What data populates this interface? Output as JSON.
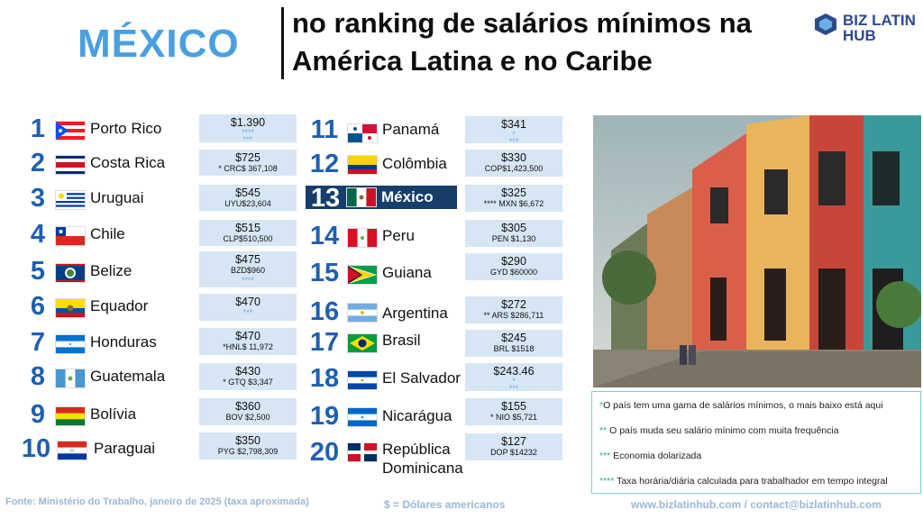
{
  "header": {
    "country": "MÉXICO",
    "title_line1": "no ranking de salários mínimos na",
    "title_line2": "América Latina e no Caribe",
    "logo_line1": "BIZ LATIN",
    "logo_line2": "HUB"
  },
  "rankings": [
    {
      "rank": "1",
      "country": "Porto Rico",
      "usd": "$1.390",
      "local": "",
      "marks": "****\n***",
      "flag": "puerto-rico-flag-icon"
    },
    {
      "rank": "2",
      "country": "Costa Rica",
      "usd": "$725",
      "local": "* CRC$ 367,108",
      "marks": "",
      "flag": "costa-rica-flag-icon"
    },
    {
      "rank": "3",
      "country": "Uruguai",
      "usd": "$545",
      "local": "UYU$23,604",
      "marks": "",
      "flag": "uruguay-flag-icon"
    },
    {
      "rank": "4",
      "country": "Chile",
      "usd": "$515",
      "local": "CLP$510,500",
      "marks": "",
      "flag": "chile-flag-icon"
    },
    {
      "rank": "5",
      "country": "Belize",
      "usd": "$475",
      "local": "BZD$960",
      "marks": "****",
      "flag": "belize-flag-icon"
    },
    {
      "rank": "6",
      "country": "Equador",
      "usd": "$470",
      "local": "",
      "marks": "***",
      "flag": "ecuador-flag-icon"
    },
    {
      "rank": "7",
      "country": "Honduras",
      "usd": "$470",
      "local": "*HNL$ 11,972",
      "marks": "",
      "flag": "honduras-flag-icon"
    },
    {
      "rank": "8",
      "country": "Guatemala",
      "usd": "$430",
      "local": "* GTQ $3,347",
      "marks": "",
      "flag": "guatemala-flag-icon"
    },
    {
      "rank": "9",
      "country": "Bolívia",
      "usd": "$360",
      "local": "BOV $2,500",
      "marks": "",
      "flag": "bolivia-flag-icon"
    },
    {
      "rank": "10",
      "country": "Paraguai",
      "usd": "$350",
      "local": "PYG $2,798,309",
      "marks": "",
      "flag": "paraguay-flag-icon"
    },
    {
      "rank": "11",
      "country": "Panamá",
      "usd": "$341",
      "local": "",
      "marks": "*\n***",
      "flag": "panama-flag-icon"
    },
    {
      "rank": "12",
      "country": "Colômbia",
      "usd": "$330",
      "local": "COP$1,423,500",
      "marks": "",
      "flag": "colombia-flag-icon"
    },
    {
      "rank": "13",
      "country": "México",
      "usd": "$325",
      "local": "**** MXN $6,672",
      "marks": "",
      "flag": "mexico-flag-icon"
    },
    {
      "rank": "14",
      "country": "Peru",
      "usd": "$305",
      "local": "PEN $1,130",
      "marks": "",
      "flag": "peru-flag-icon"
    },
    {
      "rank": "15",
      "country": "Guiana",
      "usd": "$290",
      "local": "GYD $60000",
      "marks": "",
      "flag": "guyana-flag-icon"
    },
    {
      "rank": "16",
      "country": "Argentina",
      "usd": "$272",
      "local": "** ARS $286,711",
      "marks": "",
      "flag": "argentina-flag-icon"
    },
    {
      "rank": "17",
      "country": "Brasil",
      "usd": "$245",
      "local": "BRL $1518",
      "marks": "",
      "flag": "brazil-flag-icon"
    },
    {
      "rank": "18",
      "country": "El Salvador",
      "usd": "$243.46",
      "local": "",
      "marks": "*\n***",
      "flag": "el-salvador-flag-icon"
    },
    {
      "rank": "19",
      "country": "Nicarágua",
      "usd": "$155",
      "local": "* NIO $5,721",
      "marks": "",
      "flag": "nicaragua-flag-icon"
    },
    {
      "rank": "20",
      "country": "República Dominicana",
      "usd": "$127",
      "local": "DOP $14232",
      "marks": "",
      "flag": "dominican-republic-flag-icon"
    }
  ],
  "notes": {
    "n1_mark": "*",
    "n1_text": "O país tem uma gama de salários mínimos, o mais baixo está aqui",
    "n2_mark": "**",
    "n2_text": " O país muda seu salário mínimo com muita frequência",
    "n3_mark": "***",
    "n3_text": " Economia dolarizada",
    "n4_mark": "****",
    "n4_text": " Taxa horária/diária calculada para trabalhador em tempo integral"
  },
  "footer": {
    "source": "Fonte: Ministério do Trabalho, janeiro de 2025 (taxa aproximada)",
    "usd": "$ = Dólares americanos",
    "web": "www.bizlatinhub.com / contact@bizlatinhub.com"
  },
  "colors": {
    "accent": "#4a9fe0",
    "rank": "#1f5fb0",
    "box": "#d6e6f5",
    "highlight": "#163e6b",
    "notes_border": "#7ecfcf"
  }
}
